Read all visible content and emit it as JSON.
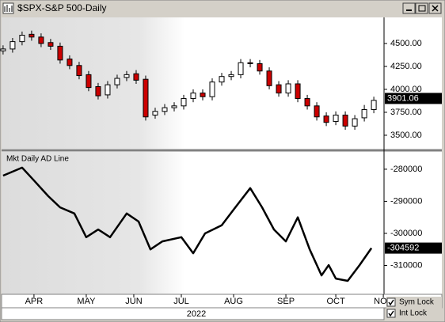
{
  "window_title": "$SPX-S&P 500-Daily",
  "chart_data": [
    {
      "type": "candlestick",
      "x": [
        0,
        4,
        8,
        12,
        16,
        20,
        24,
        28,
        32,
        36,
        40,
        44,
        48,
        52,
        56,
        60,
        64,
        68,
        72,
        76,
        80,
        84,
        88,
        92,
        96,
        100,
        104,
        108,
        112,
        116,
        120,
        124,
        128,
        132,
        136,
        140,
        144,
        148,
        152,
        156
      ],
      "open": [
        4420,
        4440,
        4520,
        4600,
        4570,
        4510,
        4470,
        4330,
        4260,
        4160,
        4030,
        3940,
        4050,
        4130,
        4170,
        4110,
        3720,
        3760,
        3800,
        3820,
        3900,
        3960,
        3920,
        4080,
        4140,
        4160,
        4290,
        4280,
        4200,
        4050,
        3960,
        4060,
        3900,
        3820,
        3710,
        3650,
        3720,
        3600,
        3690,
        3780
      ],
      "high": [
        4480,
        4560,
        4630,
        4640,
        4610,
        4550,
        4510,
        4370,
        4300,
        4200,
        4070,
        4090,
        4160,
        4200,
        4210,
        4150,
        3800,
        3840,
        3860,
        3940,
        4000,
        4000,
        4120,
        4180,
        4200,
        4330,
        4330,
        4320,
        4240,
        4090,
        4100,
        4100,
        3940,
        3860,
        3750,
        3760,
        3760,
        3720,
        3830,
        3920
      ],
      "low": [
        4380,
        4400,
        4480,
        4530,
        4460,
        4430,
        4280,
        4220,
        4110,
        3980,
        3890,
        3900,
        4010,
        4090,
        4060,
        3660,
        3680,
        3720,
        3760,
        3780,
        3860,
        3880,
        3880,
        4040,
        4100,
        4120,
        4240,
        4160,
        4000,
        3920,
        3920,
        3860,
        3780,
        3660,
        3600,
        3610,
        3560,
        3560,
        3650,
        3740
      ],
      "close": [
        4440,
        4520,
        4590,
        4570,
        4500,
        4470,
        4320,
        4260,
        4150,
        4020,
        3930,
        4050,
        4120,
        4160,
        4100,
        3700,
        3760,
        3800,
        3820,
        3900,
        3960,
        3920,
        4080,
        4140,
        4160,
        4290,
        4280,
        4200,
        4040,
        3960,
        4060,
        3900,
        3820,
        3700,
        3640,
        3720,
        3600,
        3680,
        3780,
        3880
      ],
      "up_color": "#ffffff",
      "down_color": "#cc0000",
      "last_value": 3901.06,
      "xlim": [
        -1.3,
        160.3
      ],
      "ylim": [
        3353,
        4784
      ],
      "yticks": [
        {
          "value": 4500,
          "label": "4500.00"
        },
        {
          "value": 4250,
          "label": "4250.00"
        },
        {
          "value": 4000,
          "label": "4000.00"
        },
        {
          "value": 3750,
          "label": "3750.00"
        },
        {
          "value": 3500,
          "label": "3500.00"
        }
      ]
    },
    {
      "type": "line",
      "title": "Mkt Daily AD Line",
      "x": [
        0,
        8,
        12,
        19,
        24,
        30,
        35,
        40,
        45,
        52,
        57,
        62,
        67,
        75,
        80,
        85,
        92,
        97,
        104,
        109,
        114,
        119,
        124,
        129,
        134,
        137,
        140,
        145,
        150,
        155
      ],
      "series": [
        {
          "color": "#000000",
          "values": [
            -282000,
            -279500,
            -282700,
            -288400,
            -291900,
            -293800,
            -301200,
            -298800,
            -301200,
            -293800,
            -296300,
            -305000,
            -302500,
            -301200,
            -306200,
            -300000,
            -297500,
            -292600,
            -285900,
            -291900,
            -298800,
            -302500,
            -295000,
            -305000,
            -313100,
            -309900,
            -314100,
            -314800,
            -309900,
            -304592
          ]
        }
      ],
      "last_value": -304592,
      "xlim": [
        -1.3,
        160.3
      ],
      "ylim": [
        -319000,
        -274600
      ],
      "yticks": [
        -280000,
        -290000,
        -300000,
        -310000
      ],
      "xticks": [
        {
          "value": 13,
          "label": "APR"
        },
        {
          "value": 35,
          "label": "MAY"
        },
        {
          "value": 55,
          "label": "JUN"
        },
        {
          "value": 75,
          "label": "JUL"
        },
        {
          "value": 97,
          "label": "AUG"
        },
        {
          "value": 119,
          "label": "SEP"
        },
        {
          "value": 140,
          "label": "OCT"
        },
        {
          "value": 160,
          "label": "NOV"
        }
      ],
      "xlabel": "2022"
    }
  ],
  "controls": {
    "sym_lock": "Sym Lock",
    "int_lock": "Int Lock"
  }
}
